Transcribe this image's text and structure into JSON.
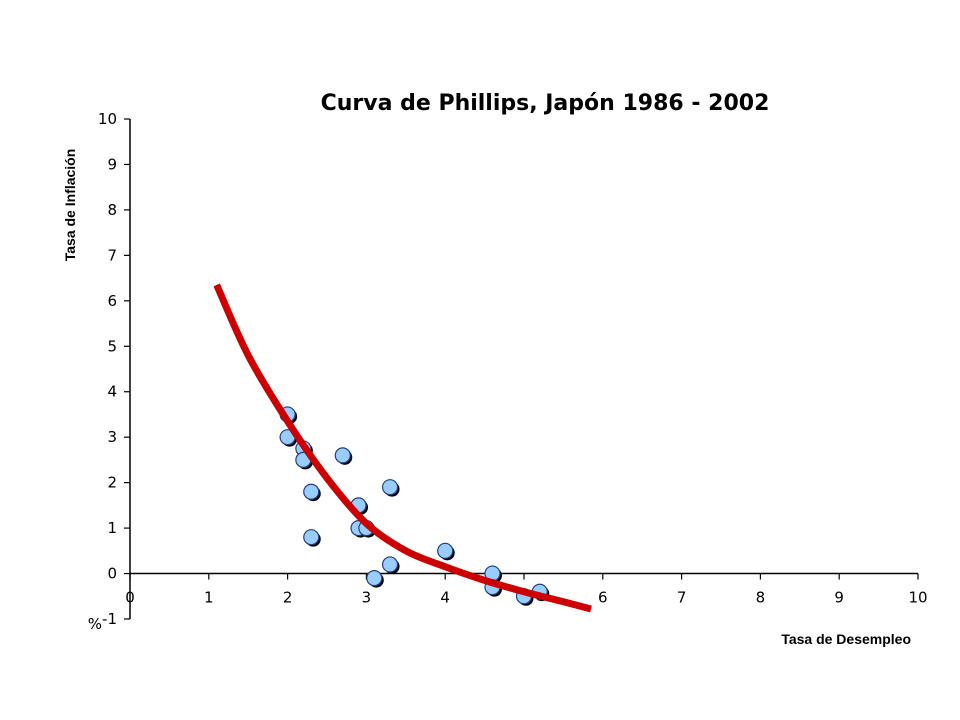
{
  "chart_data": {
    "type": "scatter",
    "title": "Curva de Phillips, Japón 1986 - 2002",
    "xlabel": "Tasa de Desempleo",
    "ylabel": "Tasa de Inflación",
    "y_unit_label": "%",
    "xlim": [
      0,
      10
    ],
    "ylim": [
      -1,
      10
    ],
    "x_ticks": [
      "0",
      "1",
      "2",
      "3",
      "4",
      "5",
      "6",
      "7",
      "8",
      "9",
      "10"
    ],
    "y_ticks": [
      "-1",
      "0",
      "1",
      "2",
      "3",
      "4",
      "5",
      "6",
      "7",
      "8",
      "9",
      "10"
    ],
    "grid": false,
    "points": [
      {
        "x": 2.0,
        "y": 3.5
      },
      {
        "x": 2.0,
        "y": 3.0
      },
      {
        "x": 2.2,
        "y": 2.75
      },
      {
        "x": 2.2,
        "y": 2.5
      },
      {
        "x": 2.3,
        "y": 1.8
      },
      {
        "x": 2.3,
        "y": 0.8
      },
      {
        "x": 2.7,
        "y": 2.6
      },
      {
        "x": 2.9,
        "y": 1.5
      },
      {
        "x": 2.9,
        "y": 1.0
      },
      {
        "x": 3.0,
        "y": 1.0
      },
      {
        "x": 3.1,
        "y": -0.1
      },
      {
        "x": 3.3,
        "y": 1.9
      },
      {
        "x": 3.3,
        "y": 0.2
      },
      {
        "x": 4.0,
        "y": 0.5
      },
      {
        "x": 4.6,
        "y": 0.0
      },
      {
        "x": 4.6,
        "y": -0.3
      },
      {
        "x": 5.0,
        "y": -0.5
      },
      {
        "x": 5.2,
        "y": -0.4
      }
    ],
    "trend_curve": [
      {
        "x": 1.1,
        "y": 6.35
      },
      {
        "x": 1.5,
        "y": 4.8
      },
      {
        "x": 2.0,
        "y": 3.35
      },
      {
        "x": 2.5,
        "y": 2.1
      },
      {
        "x": 3.0,
        "y": 1.1
      },
      {
        "x": 3.5,
        "y": 0.5
      },
      {
        "x": 4.0,
        "y": 0.15
      },
      {
        "x": 4.5,
        "y": -0.15
      },
      {
        "x": 5.0,
        "y": -0.4
      },
      {
        "x": 5.5,
        "y": -0.62
      },
      {
        "x": 5.85,
        "y": -0.78
      }
    ],
    "colors": {
      "point_fill": "#99ccff",
      "point_stroke": "#1f3f7f",
      "point_shadow": "#000000",
      "curve": "#cc0000"
    }
  }
}
